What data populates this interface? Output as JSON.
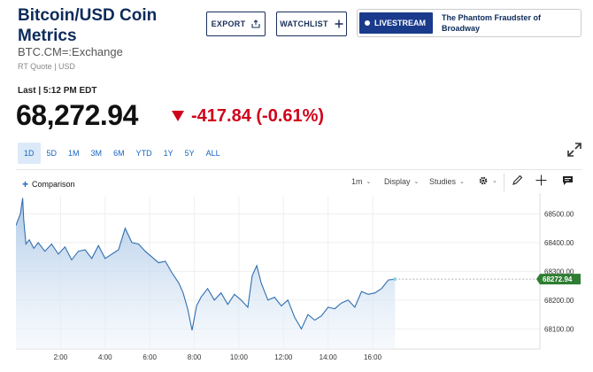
{
  "header": {
    "title": "Bitcoin/USD Coin Metrics",
    "symbol": "BTC.CM=:Exchange",
    "quote_meta": "RT Quote | USD",
    "export_label": "EXPORT",
    "watchlist_label": "WATCHLIST",
    "live_label": "LIVESTREAM",
    "live_text": "The Phantom Fraudster of Broadway"
  },
  "quote": {
    "last_label": "Last | 5:12 PM EDT",
    "price": "68,272.94",
    "change": "-417.84 (-0.61%)",
    "direction": "down",
    "change_color": "#d0021b"
  },
  "ranges": [
    {
      "label": "1D",
      "active": true
    },
    {
      "label": "5D",
      "active": false
    },
    {
      "label": "1M",
      "active": false
    },
    {
      "label": "3M",
      "active": false
    },
    {
      "label": "6M",
      "active": false
    },
    {
      "label": "YTD",
      "active": false
    },
    {
      "label": "1Y",
      "active": false
    },
    {
      "label": "5Y",
      "active": false
    },
    {
      "label": "ALL",
      "active": false
    }
  ],
  "toolbar": {
    "comparison_label": "Comparison",
    "interval_label": "1m",
    "display_label": "Display",
    "studies_label": "Studies",
    "icons": [
      "gear-icon",
      "pencil-icon",
      "crosshair-icon",
      "comment-icon"
    ]
  },
  "chart_data": {
    "type": "area",
    "x_ticks": [
      "2:00",
      "4:00",
      "6:00",
      "8:00",
      "10:00",
      "12:00",
      "14:00",
      "16:00"
    ],
    "x_tick_hours": [
      2,
      4,
      6,
      8,
      10,
      12,
      14,
      16
    ],
    "y_ticks": [
      "68500.00",
      "68400.00",
      "68300.00",
      "68200.00",
      "68100.00"
    ],
    "y_tick_values": [
      68500,
      68400,
      68300,
      68200,
      68100
    ],
    "ylim": [
      68030,
      68560
    ],
    "xlim": [
      0,
      23.5
    ],
    "last_value_label": "68272.94",
    "last_value": 68272.94,
    "line_color": "#2f6fb0",
    "series": [
      {
        "x": [
          0,
          0.2,
          0.3,
          0.35,
          0.45,
          0.6,
          0.8,
          1.0,
          1.3,
          1.6,
          1.9,
          2.2,
          2.5,
          2.8,
          3.1,
          3.4,
          3.7,
          4.0,
          4.3,
          4.6,
          4.9,
          5.2,
          5.5,
          5.8,
          6.1,
          6.4,
          6.7,
          7.0,
          7.3,
          7.5,
          7.7,
          7.9,
          8.1,
          8.3,
          8.6,
          8.9,
          9.2,
          9.5,
          9.8,
          10.1,
          10.4,
          10.6,
          10.8,
          11.0,
          11.3,
          11.6,
          11.9,
          12.2,
          12.5,
          12.8,
          13.1,
          13.4,
          13.7,
          14.0,
          14.3,
          14.6,
          14.9,
          15.2,
          15.5,
          15.8,
          16.1,
          16.4,
          16.7,
          17.0
        ],
        "y": [
          68460,
          68500,
          68555,
          68480,
          68395,
          68410,
          68380,
          68400,
          68370,
          68395,
          68360,
          68385,
          68340,
          68370,
          68375,
          68345,
          68390,
          68345,
          68360,
          68375,
          68450,
          68400,
          68395,
          68370,
          68350,
          68330,
          68335,
          68295,
          68260,
          68225,
          68170,
          68095,
          68180,
          68210,
          68240,
          68200,
          68225,
          68185,
          68220,
          68200,
          68175,
          68285,
          68320,
          68260,
          68200,
          68210,
          68180,
          68200,
          68140,
          68100,
          68150,
          68130,
          68145,
          68175,
          68170,
          68190,
          68200,
          68175,
          68230,
          68220,
          68225,
          68240,
          68270,
          68272.94
        ]
      }
    ]
  }
}
